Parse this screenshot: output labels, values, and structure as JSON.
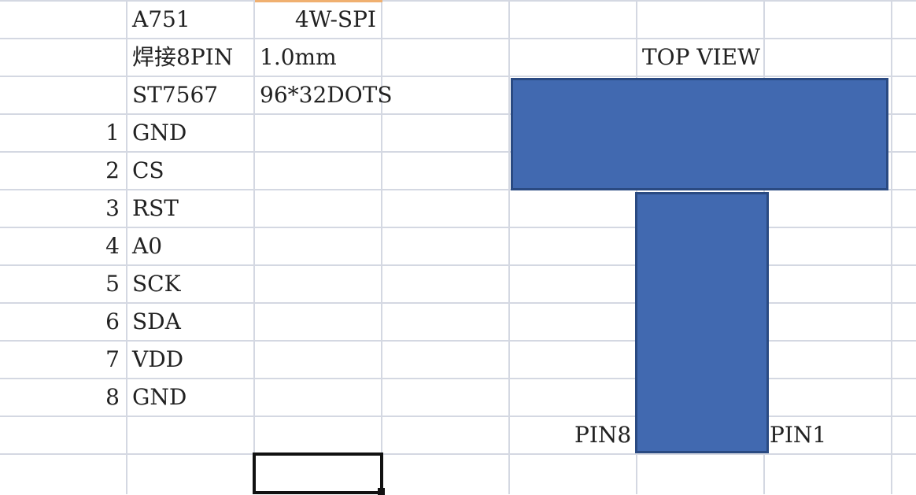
{
  "header_row": {
    "a1": "A751",
    "b1": "4W-SPI"
  },
  "row2": {
    "a": "焊接8PIN",
    "b": "1.0mm"
  },
  "row3": {
    "a": "ST7567",
    "b": "96*32DOTS"
  },
  "pins": [
    {
      "num": "1",
      "name": "GND"
    },
    {
      "num": "2",
      "name": "CS"
    },
    {
      "num": "3",
      "name": "RST"
    },
    {
      "num": "4",
      "name": "A0"
    },
    {
      "num": "5",
      "name": "SCK"
    },
    {
      "num": "6",
      "name": "SDA"
    },
    {
      "num": "7",
      "name": "VDD"
    },
    {
      "num": "8",
      "name": "GND"
    }
  ],
  "drawing": {
    "title": "TOP VIEW",
    "pin_left": "PIN8",
    "pin_right": "PIN1",
    "fill_color": "#4169b0",
    "stroke_color": "#2a4a82"
  }
}
